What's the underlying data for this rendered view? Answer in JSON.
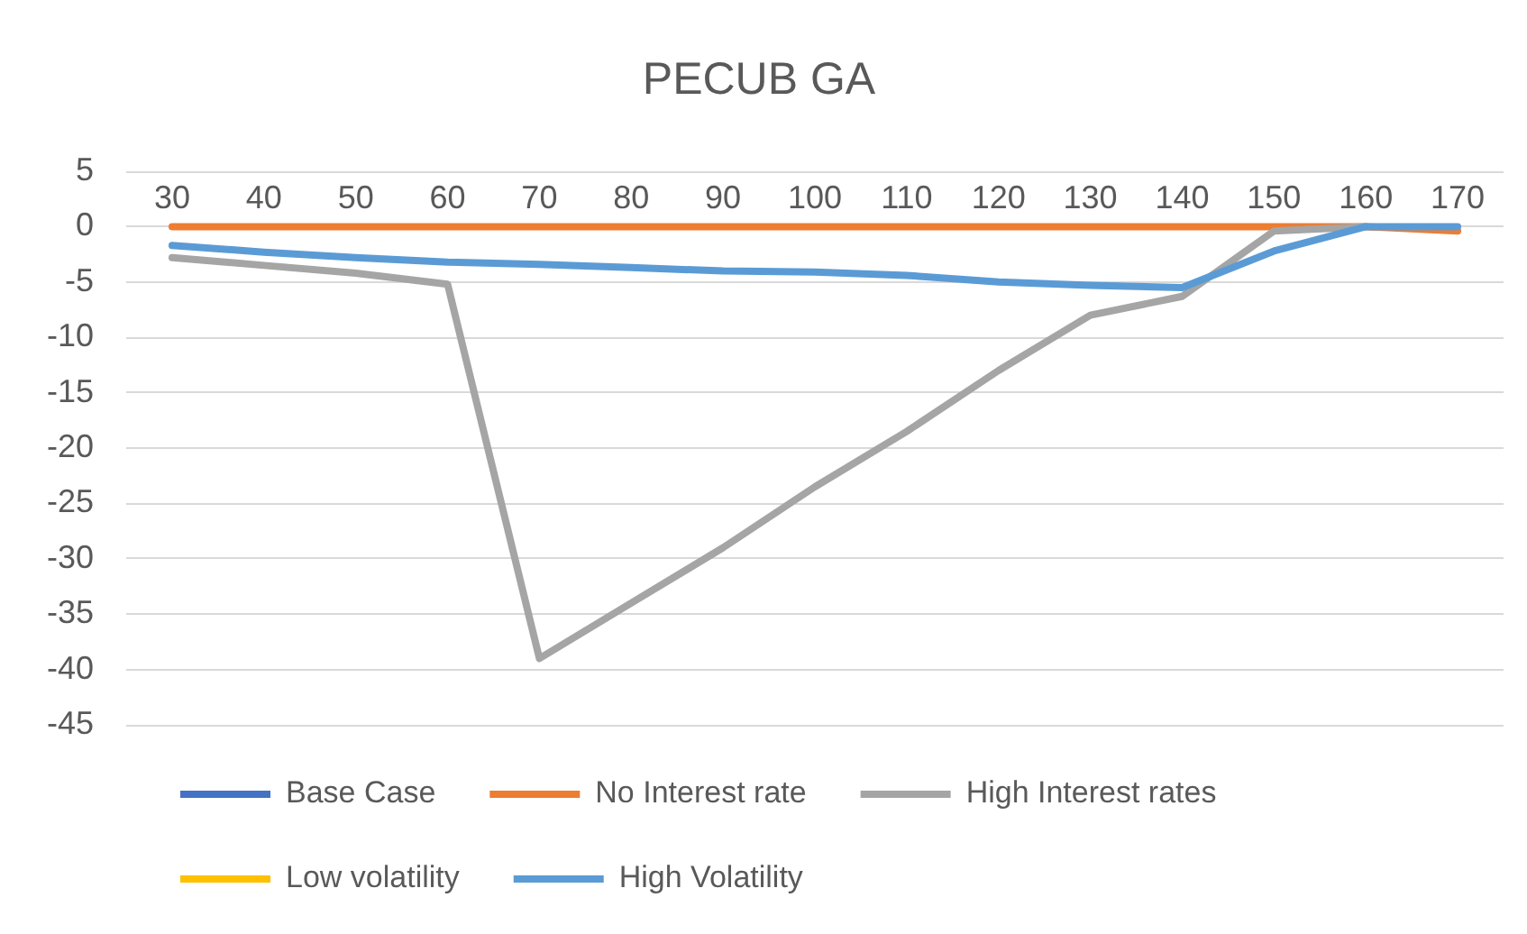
{
  "chart_data": {
    "type": "line",
    "title": "PECUB GA",
    "categories": [
      "30",
      "40",
      "50",
      "60",
      "70",
      "80",
      "90",
      "100",
      "110",
      "120",
      "130",
      "140",
      "150",
      "160",
      "170"
    ],
    "series": [
      {
        "name": "Base Case",
        "color": "#4472c4",
        "values": [
          null,
          null,
          null,
          null,
          null,
          null,
          null,
          null,
          null,
          null,
          null,
          null,
          null,
          null,
          null
        ]
      },
      {
        "name": "No Interest rate",
        "color": "#ed7d31",
        "values": [
          0,
          0,
          0,
          0,
          0,
          0,
          0,
          0,
          0,
          0,
          0,
          0,
          0,
          0,
          -0.4
        ]
      },
      {
        "name": "High Interest rates",
        "color": "#a5a5a5",
        "values": [
          -2.8,
          -3.5,
          -4.2,
          -5.2,
          -39,
          -34,
          -29,
          -23.5,
          -18.5,
          -13,
          -8,
          -6.3,
          -0.4,
          0,
          null
        ]
      },
      {
        "name": "Low volatility",
        "color": "#ffc000",
        "values": [
          null,
          null,
          null,
          null,
          null,
          null,
          null,
          null,
          null,
          null,
          null,
          null,
          null,
          null,
          null
        ]
      },
      {
        "name": "High Volatility",
        "color": "#5b9bd5",
        "values": [
          -1.7,
          -2.3,
          -2.8,
          -3.2,
          -3.4,
          -3.7,
          -4,
          -4.1,
          -4.4,
          -5,
          -5.3,
          -5.5,
          -2.2,
          0,
          0
        ]
      }
    ],
    "ylim": [
      -45,
      5
    ],
    "yticks": [
      -45,
      -40,
      -35,
      -30,
      -25,
      -20,
      -15,
      -10,
      -5,
      0,
      5
    ],
    "grid": "y",
    "legend": "bottom"
  }
}
